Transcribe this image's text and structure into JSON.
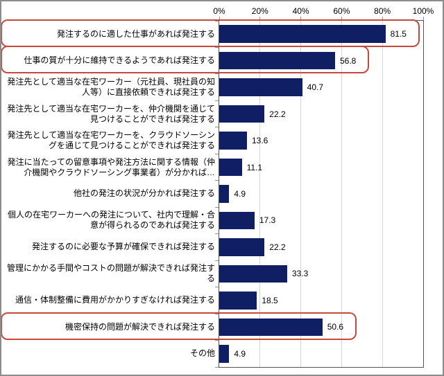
{
  "chart_data": {
    "type": "bar",
    "orientation": "horizontal",
    "title": "",
    "xlabel": "",
    "ylabel": "",
    "x_axis": {
      "position": "top",
      "min": 0,
      "max": 100,
      "tick_step": 20,
      "ticks": [
        "0%",
        "20%",
        "40%",
        "60%",
        "80%",
        "100%"
      ]
    },
    "grid": true,
    "categories": [
      "発注するのに適した仕事があれば発注する",
      "仕事の質が十分に維持できるようであれば発注する",
      "発注先として適当な在宅ワーカー（元社員、現社員の知人等）に直接依頼できれば発注する",
      "発注先として適当な在宅ワーカーを、仲介機関を通じて見つけることができれば発注する",
      "発注先として適当な在宅ワーカーを、クラウドソーシングを通じて見つけることができれば発注する",
      "発注に当たっての留意事項や発注方法に関する情報（仲介機関やクラウドソーシング事業者）が分かれば…",
      "他社の発注の状況が分かれば発注する",
      "個人の在宅ワーカーへの発注について、社内で理解・合意が得られるのであれば発注する",
      "発注するのに必要な予算が確保できれば発注する",
      "管理にかかる手間やコストの問題が解決できれば発注する",
      "通信・体制整備に費用がかかりすぎなければ発注する",
      "機密保持の問題が解決できれば発注する",
      "その他"
    ],
    "values": [
      81.5,
      56.8,
      40.7,
      22.2,
      13.6,
      11.1,
      4.9,
      17.3,
      22.2,
      33.3,
      18.5,
      50.6,
      4.9
    ],
    "highlighted_rows": [
      0,
      1,
      11
    ],
    "colors": {
      "bar": "#101F63",
      "highlight_outline": "#C5483F",
      "gridline": "#D6D6D6",
      "plot_border": "#545454",
      "chart_border": "#8C8C8C",
      "text": "#000000"
    }
  }
}
